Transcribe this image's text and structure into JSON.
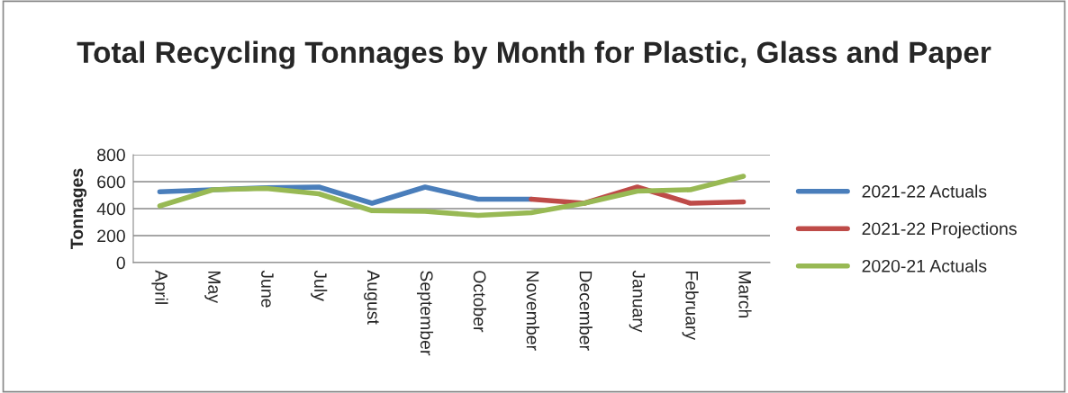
{
  "chart_data": {
    "type": "line",
    "title": "Total Recycling Tonnages by Month for Plastic, Glass and Paper",
    "ylabel": "Tonnages",
    "categories": [
      "April",
      "May",
      "June",
      "July",
      "August",
      "September",
      "October",
      "November",
      "December",
      "January",
      "February",
      "March"
    ],
    "series": [
      {
        "name": "2021-22 Actuals",
        "color": "#4a7ebb",
        "values": [
          525,
          540,
          555,
          560,
          440,
          560,
          470,
          470,
          null,
          null,
          null,
          null
        ]
      },
      {
        "name": "2021-22 Projections",
        "color": "#be4b48",
        "values": [
          null,
          null,
          null,
          null,
          null,
          null,
          null,
          470,
          440,
          560,
          440,
          450
        ]
      },
      {
        "name": "2020-21 Actuals",
        "color": "#98b954",
        "values": [
          420,
          540,
          550,
          510,
          385,
          380,
          350,
          370,
          440,
          530,
          540,
          640
        ]
      }
    ],
    "ylim": [
      0,
      800
    ],
    "yticks": [
      0,
      200,
      400,
      600,
      800
    ],
    "grid": "y",
    "legend": "right",
    "marker": "none",
    "line_style": "solid"
  }
}
